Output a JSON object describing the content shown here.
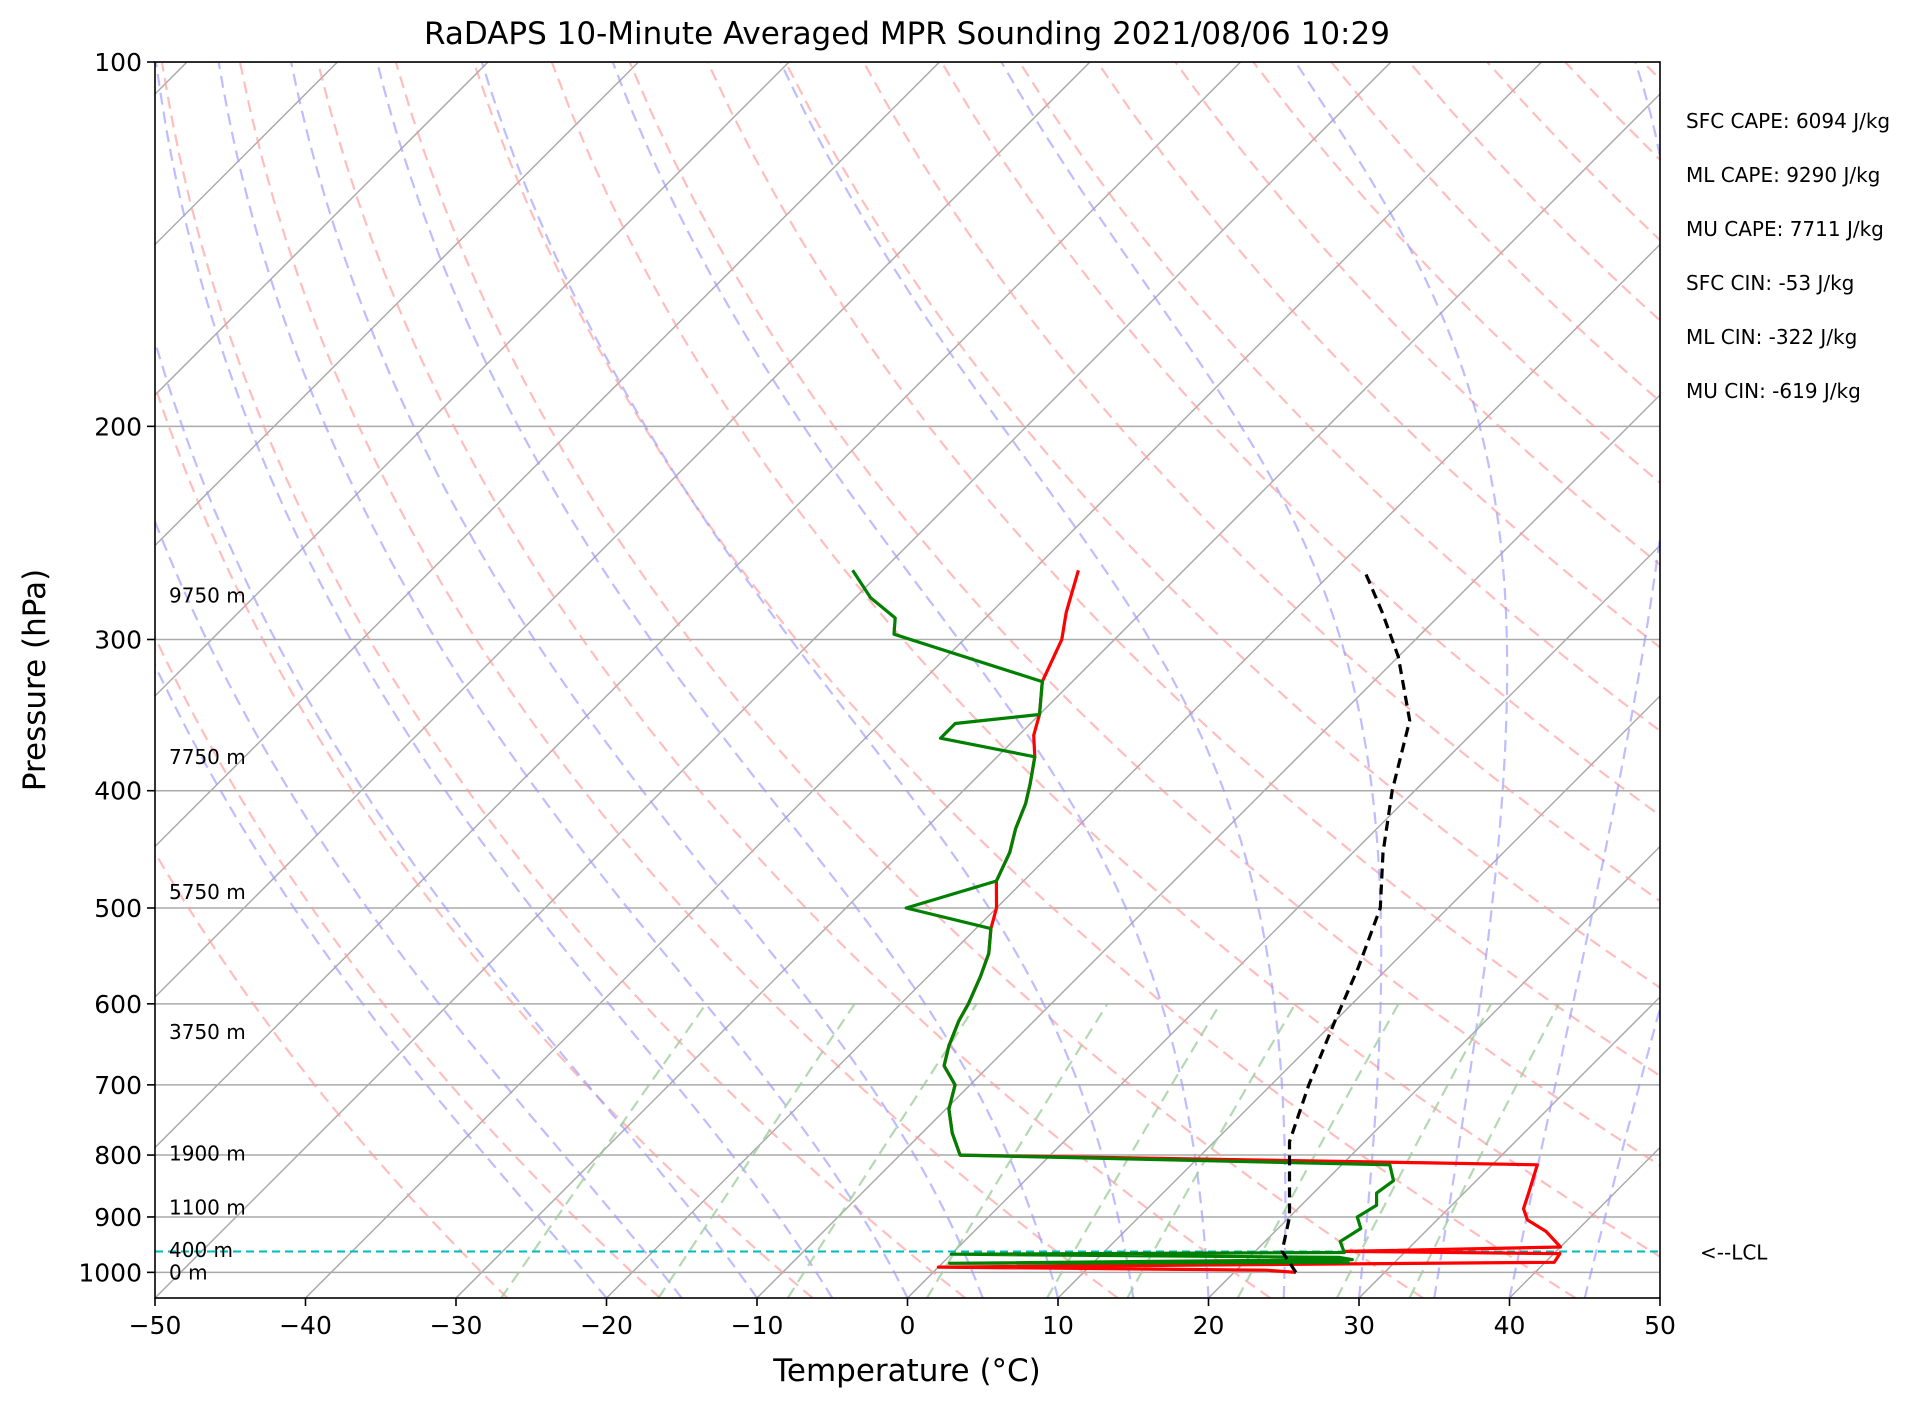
{
  "chart_data": {
    "type": "line",
    "title": "RaDAPS 10-Minute Averaged MPR Sounding 2021/08/06 10:29",
    "xlabel": "Temperature (°C)",
    "ylabel": "Pressure (hPa)",
    "xlim": [
      -50,
      50
    ],
    "ylim": [
      1050,
      100
    ],
    "y_scale": "log",
    "x_ticks": [
      "−50",
      "−40",
      "−30",
      "−20",
      "−10",
      "0",
      "10",
      "20",
      "30",
      "40",
      "50"
    ],
    "y_ticks": [
      "100",
      "200",
      "300",
      "400",
      "500",
      "600",
      "700",
      "800",
      "900",
      "1000"
    ],
    "grid": true,
    "series": [
      {
        "color": "#ff0000",
        "points": [
          [
            24.1,
            1000
          ],
          [
            22,
            996
          ],
          [
            0,
            990
          ],
          [
            40.6,
            981
          ],
          [
            40.4,
            965
          ],
          [
            26,
            961
          ],
          [
            40,
            953
          ],
          [
            38,
            925
          ],
          [
            36,
            905
          ],
          [
            35,
            886
          ],
          [
            34.3,
            860
          ],
          [
            33,
            815
          ],
          [
            25.7,
            812
          ],
          [
            -6,
            800
          ],
          [
            -8,
            767
          ],
          [
            -9.8,
            733
          ],
          [
            -11,
            700
          ],
          [
            -13,
            675
          ],
          [
            -14,
            650
          ],
          [
            -15,
            620
          ],
          [
            -15.5,
            600
          ],
          [
            -16.5,
            570
          ],
          [
            -17.5,
            545
          ],
          [
            -19,
            520
          ],
          [
            -20,
            500
          ],
          [
            -21.8,
            475
          ],
          [
            -22.8,
            450
          ],
          [
            -24,
            430
          ],
          [
            -25,
            410
          ],
          [
            -26,
            395
          ],
          [
            -27.5,
            375
          ],
          [
            -29,
            360
          ],
          [
            -30,
            346
          ],
          [
            -32,
            325
          ],
          [
            -33.5,
            300
          ],
          [
            -35,
            285
          ],
          [
            -37,
            263
          ]
        ]
      },
      {
        "color": "#008000",
        "points": [
          [
            27,
            981
          ],
          [
            0.5,
            983
          ],
          [
            27,
            976
          ],
          [
            26,
            972
          ],
          [
            0,
            966
          ],
          [
            26,
            963
          ],
          [
            25,
            943
          ],
          [
            25.5,
            920
          ],
          [
            24.5,
            900
          ],
          [
            25,
            880
          ],
          [
            24.2,
            860
          ],
          [
            24.5,
            840
          ],
          [
            23.2,
            815
          ],
          [
            -6,
            800
          ],
          [
            -8,
            767
          ],
          [
            -9.8,
            733
          ],
          [
            -11,
            700
          ],
          [
            -13,
            675
          ],
          [
            -14,
            650
          ],
          [
            -15,
            620
          ],
          [
            -15.5,
            600
          ],
          [
            -16.5,
            570
          ],
          [
            -17.5,
            545
          ],
          [
            -19,
            520
          ],
          [
            -26,
            500
          ],
          [
            -21.8,
            475
          ],
          [
            -22.8,
            450
          ],
          [
            -24,
            430
          ],
          [
            -25,
            410
          ],
          [
            -26,
            395
          ],
          [
            -27.5,
            375
          ],
          [
            -35,
            362
          ],
          [
            -35,
            352
          ],
          [
            -30,
            346
          ],
          [
            -32,
            325
          ],
          [
            -45,
            297
          ],
          [
            -46,
            288
          ],
          [
            -49,
            277
          ],
          [
            -52,
            263
          ]
        ]
      },
      {
        "color": "#000000",
        "dashed": true,
        "points": [
          [
            24.1,
            1000
          ],
          [
            21.8,
            961
          ],
          [
            20,
            900
          ],
          [
            18,
            850
          ],
          [
            15,
            780
          ],
          [
            12.5,
            700
          ],
          [
            10,
            620
          ],
          [
            8,
            560
          ],
          [
            5.5,
            500
          ],
          [
            2,
            450
          ],
          [
            -1.5,
            400
          ],
          [
            -5,
            350
          ],
          [
            -10,
            310
          ],
          [
            -14,
            285
          ],
          [
            -18,
            263
          ]
        ]
      }
    ],
    "lcl_pressure": 961,
    "lcl_label": "<--LCL",
    "height_labels": [
      {
        "text": "9750 m",
        "p": 276
      },
      {
        "text": "7750 m",
        "p": 375
      },
      {
        "text": "5750 m",
        "p": 485
      },
      {
        "text": "3750 m",
        "p": 633
      },
      {
        "text": "1900 m",
        "p": 798
      },
      {
        "text": "1100 m",
        "p": 884
      },
      {
        "text": "400 m",
        "p": 958
      },
      {
        "text": "0 m",
        "p": 1000
      }
    ],
    "indices": [
      "SFC CAPE: 6094 J/kg",
      "ML CAPE: 9290 J/kg",
      "MU CAPE: 7711 J/kg",
      "SFC CIN: -53 J/kg",
      "ML CIN: -322 J/kg",
      "MU CIN: -619 J/kg"
    ],
    "colors": {
      "isotherm": "#aaaaaa",
      "dry_adiabat": "#ff9999",
      "moist_adiabat": "#9999ff",
      "mixing_ratio": "#99cc99",
      "lcl_line": "#00bbbb"
    }
  }
}
